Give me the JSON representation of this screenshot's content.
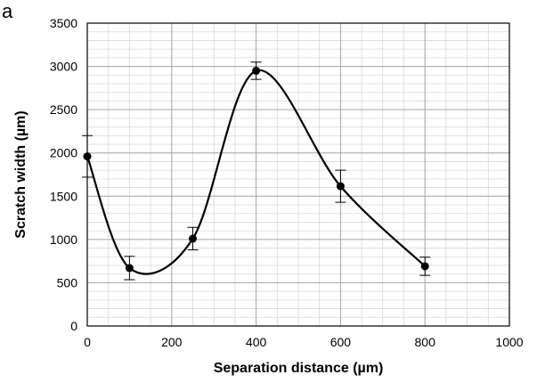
{
  "panel_label": "a",
  "chart_data": {
    "type": "line",
    "title": "",
    "xlabel": "Separation distance (µm)",
    "ylabel": "Scratch width (µm)",
    "xlim": [
      0,
      1000
    ],
    "ylim": [
      0,
      3500
    ],
    "xticks": [
      0,
      200,
      400,
      600,
      800,
      1000
    ],
    "yticks": [
      0,
      500,
      1000,
      1500,
      2000,
      2500,
      3000,
      3500
    ],
    "x_minor_step": 50,
    "y_minor_step": 100,
    "grid": true,
    "smoothed": true,
    "series": [
      {
        "x": [
          0,
          100,
          250,
          400,
          600,
          800
        ],
        "y": [
          1960,
          670,
          1010,
          2950,
          1615,
          690
        ],
        "error": [
          240,
          135,
          130,
          100,
          185,
          105
        ]
      }
    ],
    "colors": {
      "line": "#000000",
      "marker": "#000000",
      "major_grid": "#a6a6a6",
      "minor_grid": "#d9d9d9",
      "axis": "#000000"
    }
  }
}
